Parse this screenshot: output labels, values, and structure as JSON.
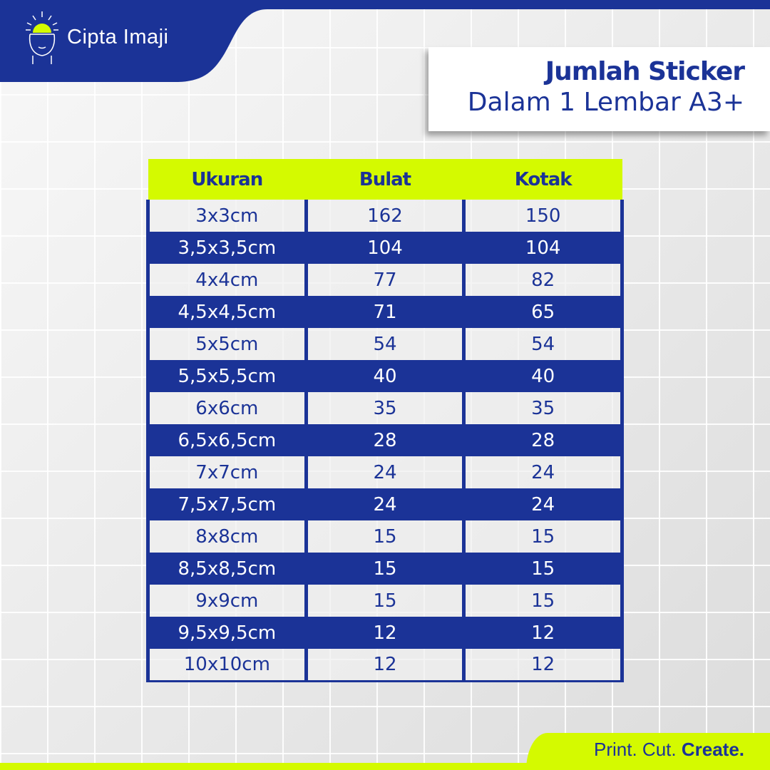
{
  "brand": {
    "name": "Cipta Imaji",
    "primary_color": "#1b3397",
    "accent_color": "#d4fa00",
    "logo_icon": "head-lightbulb-icon"
  },
  "title": {
    "line1": "Jumlah Sticker",
    "line2": "Dalam 1 Lembar A3+"
  },
  "table": {
    "headers": [
      "Ukuran",
      "Bulat",
      "Kotak"
    ],
    "rows": [
      [
        "3x3cm",
        "162",
        "150"
      ],
      [
        "3,5x3,5cm",
        "104",
        "104"
      ],
      [
        "4x4cm",
        "77",
        "82"
      ],
      [
        "4,5x4,5cm",
        "71",
        "65"
      ],
      [
        "5x5cm",
        "54",
        "54"
      ],
      [
        "5,5x5,5cm",
        "40",
        "40"
      ],
      [
        "6x6cm",
        "35",
        "35"
      ],
      [
        "6,5x6,5cm",
        "28",
        "28"
      ],
      [
        "7x7cm",
        "24",
        "24"
      ],
      [
        "7,5x7,5cm",
        "24",
        "24"
      ],
      [
        "8x8cm",
        "15",
        "15"
      ],
      [
        "8,5x8,5cm",
        "15",
        "15"
      ],
      [
        "9x9cm",
        "15",
        "15"
      ],
      [
        "9,5x9,5cm",
        "12",
        "12"
      ],
      [
        "10x10cm",
        "12",
        "12"
      ]
    ]
  },
  "footer": {
    "part1": "Print. Cut. ",
    "part2": "Create."
  }
}
